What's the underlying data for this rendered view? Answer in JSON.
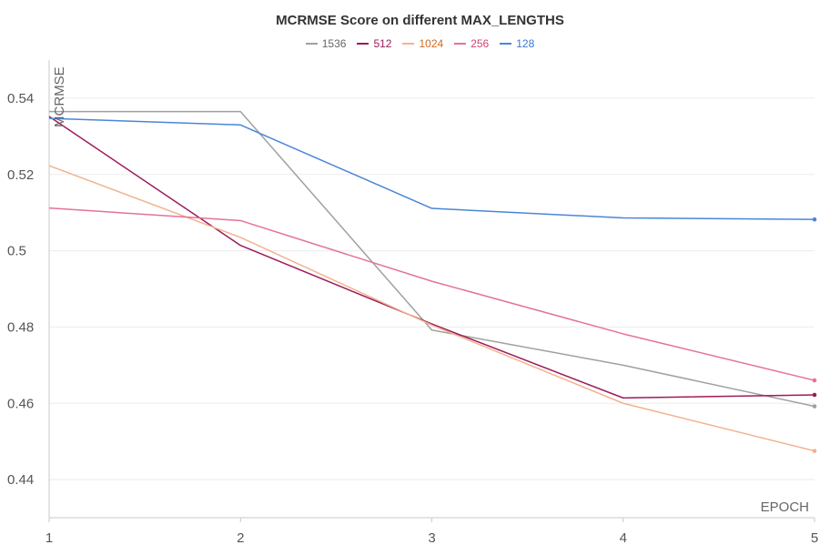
{
  "chart_data": {
    "type": "line",
    "title": "MCRMSE Score on different MAX_LENGTHS",
    "xlabel": "EPOCH",
    "ylabel": "MCRMSE",
    "x": [
      1,
      2,
      3,
      4,
      5
    ],
    "xlim": [
      1,
      5
    ],
    "ylim": [
      0.43,
      0.55
    ],
    "x_ticks": [
      1,
      2,
      3,
      4,
      5
    ],
    "y_ticks": [
      0.44,
      0.46,
      0.48,
      0.5,
      0.52,
      0.54
    ],
    "y_tick_labels": [
      "0.44",
      "0.46",
      "0.48",
      "0.5",
      "0.52",
      "0.54"
    ],
    "grid": true,
    "legend_position": "top-center",
    "series": [
      {
        "name": "1536",
        "color": "#a0a0a0",
        "values": [
          0.5365,
          0.5365,
          0.4792,
          0.47,
          0.4592
        ]
      },
      {
        "name": "512",
        "color": "#9b1b5a",
        "values": [
          0.5352,
          0.5014,
          0.4808,
          0.4614,
          0.4622
        ]
      },
      {
        "name": "1024",
        "color": "#f2b28f",
        "legend_text_color": "#d2691e",
        "values": [
          0.5223,
          0.5035,
          0.4805,
          0.46,
          0.4475
        ]
      },
      {
        "name": "256",
        "color": "#e3729a",
        "legend_text_color": "#d0446f",
        "values": [
          0.5112,
          0.5079,
          0.492,
          0.4782,
          0.466
        ]
      },
      {
        "name": "128",
        "color": "#4a86d8",
        "legend_text_color": "#3a78cf",
        "values": [
          0.5347,
          0.533,
          0.5111,
          0.5086,
          0.5082
        ]
      }
    ]
  }
}
